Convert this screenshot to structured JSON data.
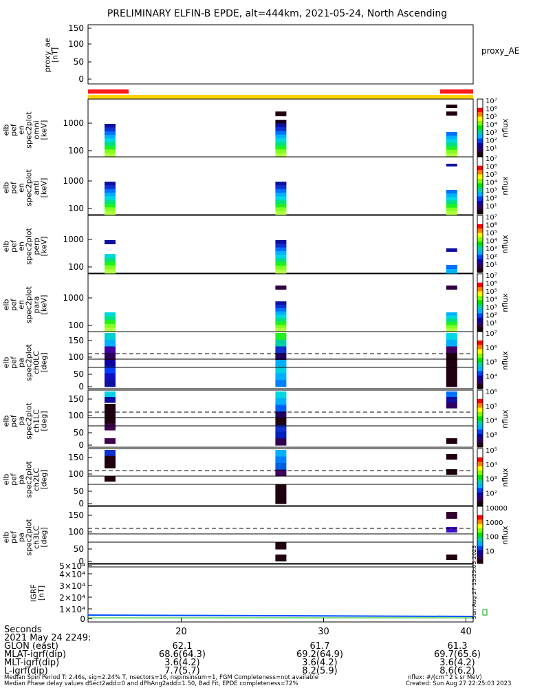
{
  "title": "PRELIMINARY ELFIN-B EPDE, alt=444km, 2021-05-24, North Ascending",
  "proxy_ae": {
    "ylabel": "proxy_ae\n[nT]",
    "ticks": [
      "150",
      "100",
      "50",
      "0"
    ],
    "right_label": "proxy_AE"
  },
  "energy_panels": [
    {
      "ylabel": "elb\npef\nen\nspec2plot\nomni\n[keV]",
      "ticks": [
        "1000",
        "100"
      ]
    },
    {
      "ylabel": "elb\npef\nen\nspec2plot\nanti\n[keV]",
      "ticks": [
        "1000",
        "100"
      ]
    },
    {
      "ylabel": "elb\npef\nen\nspec2plot\nperp\n[keV]",
      "ticks": [
        "1000",
        "100"
      ]
    },
    {
      "ylabel": "elb\npef\nen\nspec2plot\npara\n[keV]",
      "ticks": [
        "1000",
        "100"
      ]
    }
  ],
  "pa_panels": [
    {
      "ylabel": "elb\npef\npa\nspec2plot\nch0LC\n[deg]",
      "ticks": [
        "150",
        "100",
        "50",
        "0"
      ]
    },
    {
      "ylabel": "elb\npef\npa\nspec2plot\nch1LC\n[deg]",
      "ticks": [
        "150",
        "100",
        "50",
        "0"
      ]
    },
    {
      "ylabel": "elb\npef\npa\nspec2plot\nch2LC\n[deg]",
      "ticks": [
        "150",
        "100",
        "50",
        "0"
      ]
    },
    {
      "ylabel": "elb\npef\npa\nspec2plot\nch3LC\n[deg]",
      "ticks": [
        "150",
        "100",
        "50",
        "0"
      ]
    }
  ],
  "igrf": {
    "ylabel": "IGRF\n[nT]",
    "ticks": [
      "5×10⁴",
      "4×10⁴",
      "3×10⁴",
      "2×10⁴",
      "1×10⁴",
      "0"
    ]
  },
  "colorbars": [
    {
      "label": "nflux",
      "ticks": [
        "10⁷",
        "10⁶",
        "10⁵",
        "10⁴",
        "10³",
        "10²",
        "10¹"
      ]
    },
    {
      "label": "nflux",
      "ticks": [
        "10⁷",
        "10⁶",
        "10⁵",
        "10⁴",
        "10³",
        "10²",
        "10¹"
      ]
    },
    {
      "label": "nflux",
      "ticks": [
        "10⁷",
        "10⁶",
        "10⁵",
        "10⁴",
        "10³",
        "10²",
        "10¹"
      ]
    },
    {
      "label": "nflux",
      "ticks": [
        "10⁷",
        "10⁶",
        "10⁵",
        "10⁴",
        "10³",
        "10²",
        "10¹"
      ]
    },
    {
      "label": "nflux",
      "ticks": [
        "10⁷",
        "10⁶",
        "10⁵",
        "10⁴"
      ]
    },
    {
      "label": "nflux",
      "ticks": [
        "10⁶",
        "10⁵",
        "10⁴",
        "10³"
      ]
    },
    {
      "label": "nflux",
      "ticks": [
        "10⁵",
        "10⁴",
        "10³",
        "10²"
      ]
    },
    {
      "label": "nflux",
      "ticks": [
        "10000",
        "1000",
        "100",
        "10"
      ]
    }
  ],
  "side_text": "Sun Aug 27 15:25:03 2023",
  "chart_data": {
    "type": "heatmap",
    "x_axis_title": "Seconds",
    "x_ticks": [
      "20",
      "30",
      "40"
    ],
    "time_label": "2021 May 24 2249:",
    "ephemeris": [
      {
        "name": "GLON (east)",
        "values": [
          "62.1",
          "61.7",
          "61.3"
        ]
      },
      {
        "name": "MLAT-igrf(dip)",
        "values": [
          "68.6(64.3)",
          "69.2(64.9)",
          "69.7(65.6)"
        ]
      },
      {
        "name": "MLT-igrf(dip)",
        "values": [
          "3.6(4.2)",
          "3.6(4.2)",
          "3.6(4.2)"
        ]
      },
      {
        "name": "L-igrf(dip)",
        "values": [
          "7.7(5.7)",
          "8.2(5.9)",
          "8.6(6.2)"
        ]
      }
    ],
    "spin_blocks_seconds": [
      15,
      27,
      39
    ]
  },
  "footer": {
    "line1": "Median Spin Period T: 2.46s, sig=2.24% T, nsectors=16, nspinsinsum=1, FGM Completeness=not available",
    "line2": "Median Phase delay values dSect2add=0 and dPhAng2add=1.50, Bad Fit, EPDE completeness=72%",
    "units": "nflux: #/(cm^2 s sr MeV)",
    "created": "Created: Sun Aug 27 22:25:03 2023"
  }
}
